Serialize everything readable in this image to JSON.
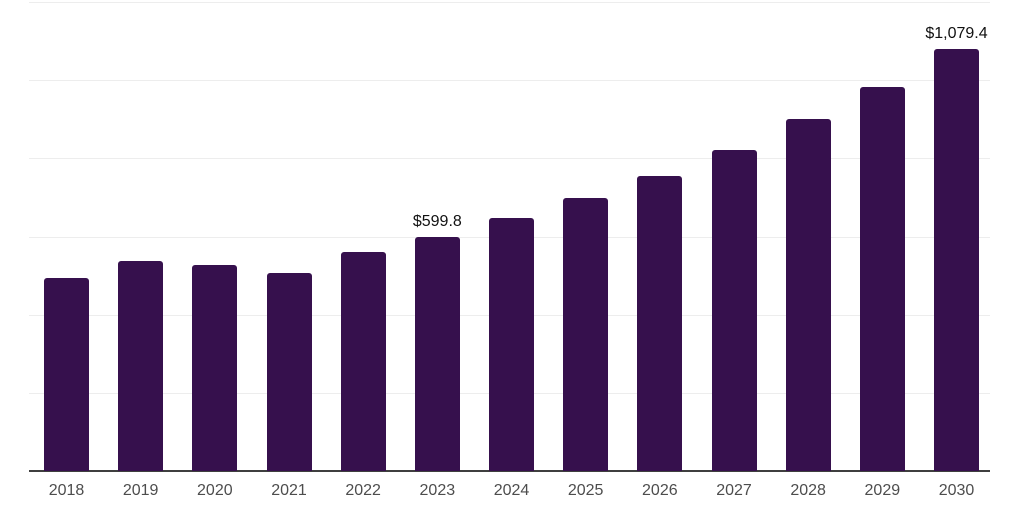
{
  "chart_data": {
    "type": "bar",
    "title": "",
    "xlabel": "",
    "ylabel": "",
    "categories": [
      "2018",
      "2019",
      "2020",
      "2021",
      "2022",
      "2023",
      "2024",
      "2025",
      "2026",
      "2027",
      "2028",
      "2029",
      "2030"
    ],
    "values": [
      493,
      537,
      527,
      507,
      561,
      599.8,
      647,
      698,
      755,
      821,
      901,
      983,
      1079.4
    ],
    "data_labels": {
      "2023": "$599.8",
      "2030": "$1,079.4"
    },
    "ylim": [
      0,
      1200
    ],
    "gridline_step": 200,
    "grid": "horizontal-only",
    "legend": "none",
    "y_axis_tick_labels": "none",
    "colors": {
      "bar": "#36104D",
      "axis_line": "#3f3f3f",
      "gridline": "#ededed",
      "x_tick_label": "#4d4d4d",
      "data_label": "#111111",
      "background": "#ffffff"
    }
  }
}
